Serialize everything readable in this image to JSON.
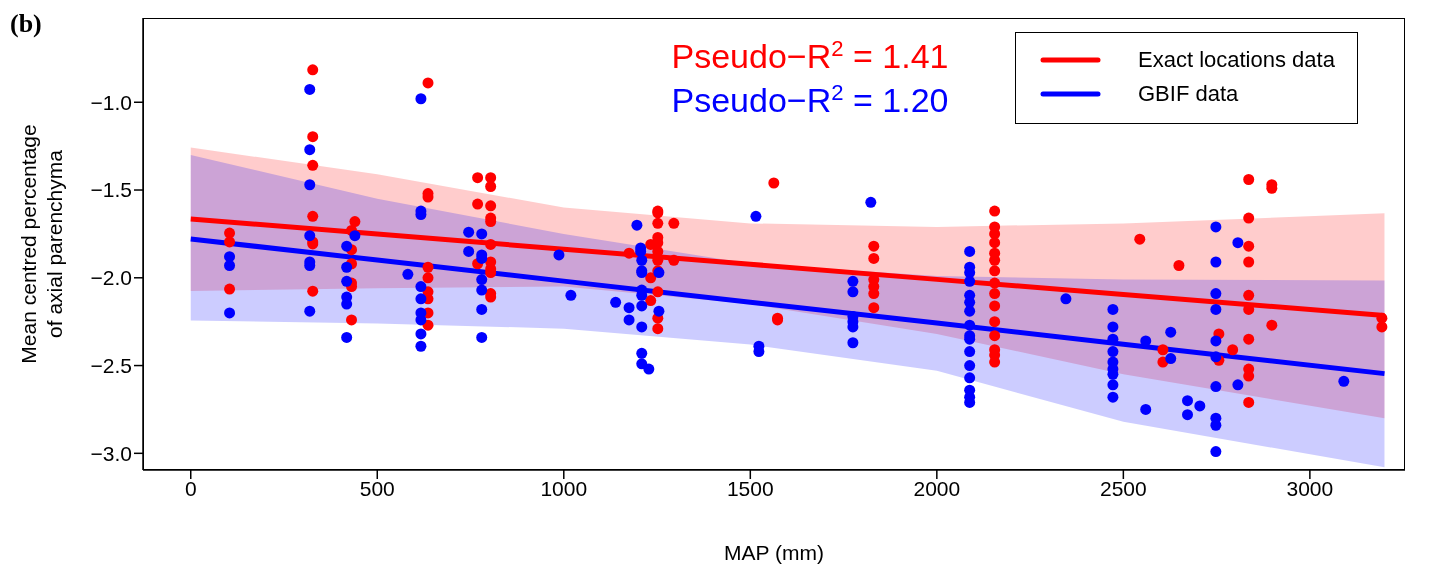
{
  "chart_data": {
    "type": "scatter",
    "title": "(b)",
    "xlabel": "MAP (mm)",
    "ylabel": "Mean centred percentage\nof axial parenchyma",
    "annotations": [
      "Pseudo−R$^{2}$ = 1.41",
      "Pseudo−R$^{2}$ = 1.20"
    ],
    "xlim": [
      -128,
      3255
    ],
    "xticks": [
      0,
      500,
      1000,
      1500,
      2000,
      2500,
      3000
    ],
    "ylim": [
      -3.095,
      -0.52
    ],
    "yticks": [
      {
        "value": -1.0,
        "label": "−1.0"
      },
      {
        "value": -1.5,
        "label": "−1.5"
      },
      {
        "value": -2.0,
        "label": "−2.0"
      },
      {
        "value": -2.5,
        "label": "−2.5"
      },
      {
        "value": -3.0,
        "label": "−3.0"
      }
    ],
    "legend": "top right",
    "series": [
      {
        "marker": "circle",
        "color": "#ff0000",
        "x": [
          104,
          104,
          104,
          327,
          327,
          327,
          327,
          327,
          327,
          327,
          440,
          431,
          431,
          431,
          431,
          431,
          431,
          636,
          636,
          636,
          636,
          636,
          636,
          636,
          636,
          636,
          769,
          769,
          769,
          804,
          804,
          804,
          804,
          804,
          804,
          804,
          804,
          804,
          804,
          804,
          1175,
          1233,
          1233,
          1233,
          1252,
          1252,
          1252,
          1252,
          1252,
          1252,
          1252,
          1252,
          1252,
          1252,
          1252,
          1295,
          1295,
          1563,
          1573,
          1573,
          1831,
          1831,
          1831,
          1831,
          1831,
          1831,
          2155,
          2155,
          2155,
          2155,
          2155,
          2155,
          2155,
          2155,
          2155,
          2155,
          2155,
          2155,
          2155,
          2155,
          2155,
          2544,
          2606,
          2606,
          2649,
          2756,
          2756,
          2793,
          2836,
          2836,
          2836,
          2836,
          2836,
          2836,
          2836,
          2836,
          2836,
          2836,
          2898,
          2898,
          2898,
          3193,
          3193
        ],
        "values": [
          -1.745,
          -1.796,
          -2.064,
          -0.815,
          -1.196,
          -1.359,
          -1.65,
          -1.796,
          -1.807,
          -2.076,
          -1.68,
          -1.73,
          -1.84,
          -1.92,
          -2.03,
          -2.05,
          -2.24,
          -0.89,
          -1.52,
          -1.54,
          -1.94,
          -2.0,
          -2.08,
          -2.12,
          -2.2,
          -2.27,
          -1.43,
          -1.58,
          -1.92,
          -1.43,
          -1.48,
          -1.59,
          -1.66,
          -1.68,
          -1.81,
          -1.91,
          -1.95,
          -1.97,
          -2.09,
          -2.11,
          -1.86,
          -1.81,
          -2.0,
          -2.13,
          -1.62,
          -1.63,
          -1.69,
          -1.77,
          -1.8,
          -1.85,
          -1.9,
          -1.96,
          -2.08,
          -2.23,
          -2.29,
          -1.69,
          -1.9,
          -1.46,
          -2.23,
          -2.24,
          -1.82,
          -1.89,
          -2.01,
          -2.05,
          -2.09,
          -2.17,
          -1.62,
          -1.71,
          -1.75,
          -1.8,
          -1.86,
          -1.9,
          -1.96,
          -2.03,
          -2.09,
          -2.16,
          -2.25,
          -2.33,
          -2.41,
          -2.44,
          -2.48,
          -1.78,
          -2.41,
          -2.48,
          -1.93,
          -2.32,
          -2.47,
          -2.41,
          -1.44,
          -1.66,
          -1.82,
          -1.91,
          -2.1,
          -2.18,
          -2.35,
          -2.52,
          -2.56,
          -2.71,
          -1.47,
          -1.49,
          -2.27,
          -2.23,
          -2.28
        ]
      },
      {
        "marker": "circle",
        "color": "#0000ff",
        "x": [
          104,
          104,
          104,
          319,
          319,
          319,
          319,
          319,
          319,
          319,
          418,
          418,
          418,
          418,
          418,
          418,
          440,
          582,
          617,
          617,
          617,
          617,
          617,
          617,
          617,
          617,
          617,
          745,
          745,
          780,
          780,
          780,
          780,
          780,
          780,
          780,
          987,
          1019,
          1139,
          1175,
          1175,
          1196,
          1206,
          1206,
          1209,
          1209,
          1209,
          1209,
          1209,
          1209,
          1209,
          1209,
          1209,
          1228,
          1255,
          1255,
          1515,
          1523,
          1523,
          1775,
          1775,
          1775,
          1775,
          1775,
          1775,
          1823,
          2088,
          2088,
          2088,
          2088,
          2088,
          2088,
          2088,
          2088,
          2088,
          2088,
          2088,
          2088,
          2088,
          2088,
          2088,
          2088,
          2346,
          2472,
          2472,
          2472,
          2472,
          2472,
          2472,
          2472,
          2472,
          2472,
          2560,
          2560,
          2627,
          2627,
          2672,
          2672,
          2705,
          2748,
          2748,
          2748,
          2748,
          2748,
          2748,
          2748,
          2748,
          2748,
          2748,
          2807,
          2807,
          3091
        ],
        "values": [
          -1.88,
          -1.93,
          -2.2,
          -0.927,
          -1.27,
          -1.47,
          -1.76,
          -1.91,
          -1.93,
          -2.19,
          -1.82,
          -1.94,
          -2.02,
          -2.11,
          -2.15,
          -2.34,
          -1.76,
          -1.98,
          -0.98,
          -1.62,
          -1.64,
          -2.05,
          -2.12,
          -2.2,
          -2.24,
          -2.32,
          -2.39,
          -1.74,
          -1.85,
          -1.75,
          -1.87,
          -1.89,
          -2.01,
          -2.07,
          -2.18,
          -2.34,
          -1.87,
          -2.1,
          -2.14,
          -2.17,
          -2.24,
          -1.7,
          -1.85,
          -1.83,
          -1.9,
          -1.96,
          -1.97,
          -2.07,
          -2.1,
          -2.16,
          -2.28,
          -2.43,
          -2.49,
          -2.52,
          -1.97,
          -2.19,
          -1.65,
          -2.39,
          -2.42,
          -2.02,
          -2.08,
          -2.22,
          -2.25,
          -2.28,
          -2.37,
          -1.57,
          -1.85,
          -1.94,
          -1.97,
          -2.02,
          -2.1,
          -2.14,
          -2.19,
          -2.27,
          -2.33,
          -2.35,
          -2.42,
          -2.5,
          -2.57,
          -2.64,
          -2.68,
          -2.71,
          -2.12,
          -2.18,
          -2.28,
          -2.35,
          -2.42,
          -2.48,
          -2.52,
          -2.55,
          -2.61,
          -2.68,
          -2.36,
          -2.75,
          -2.31,
          -2.46,
          -2.7,
          -2.78,
          -2.73,
          -1.71,
          -1.91,
          -2.09,
          -2.18,
          -2.36,
          -2.45,
          -2.62,
          -2.8,
          -2.84,
          -2.99,
          -1.8,
          -2.61,
          -2.59
        ]
      },
      {
        "type": "line",
        "name": "Exact locations data",
        "color": "#ff0000",
        "x": [
          0,
          500,
          1000,
          1500,
          2000,
          2500,
          3200
        ],
        "values": [
          -1.665,
          -1.751,
          -1.837,
          -1.923,
          -2.009,
          -2.095,
          -2.215
        ],
        "lower": [
          -2.075,
          -2.06,
          -2.05,
          -2.15,
          -2.32,
          -2.55,
          -2.8
        ],
        "upper": [
          -1.258,
          -1.41,
          -1.6,
          -1.69,
          -1.71,
          -1.69,
          -1.633
        ]
      },
      {
        "type": "line",
        "name": "GBIF data",
        "color": "#0000ff",
        "x": [
          0,
          500,
          1000,
          1500,
          2000,
          2500,
          3200
        ],
        "values": [
          -1.779,
          -1.899,
          -2.019,
          -2.139,
          -2.258,
          -2.378,
          -2.546
        ],
        "lower": [
          -2.244,
          -2.26,
          -2.29,
          -2.38,
          -2.53,
          -2.82,
          -3.08
        ],
        "upper": [
          -1.3,
          -1.55,
          -1.75,
          -1.92,
          -1.99,
          -2.01,
          -2.015
        ]
      }
    ]
  }
}
